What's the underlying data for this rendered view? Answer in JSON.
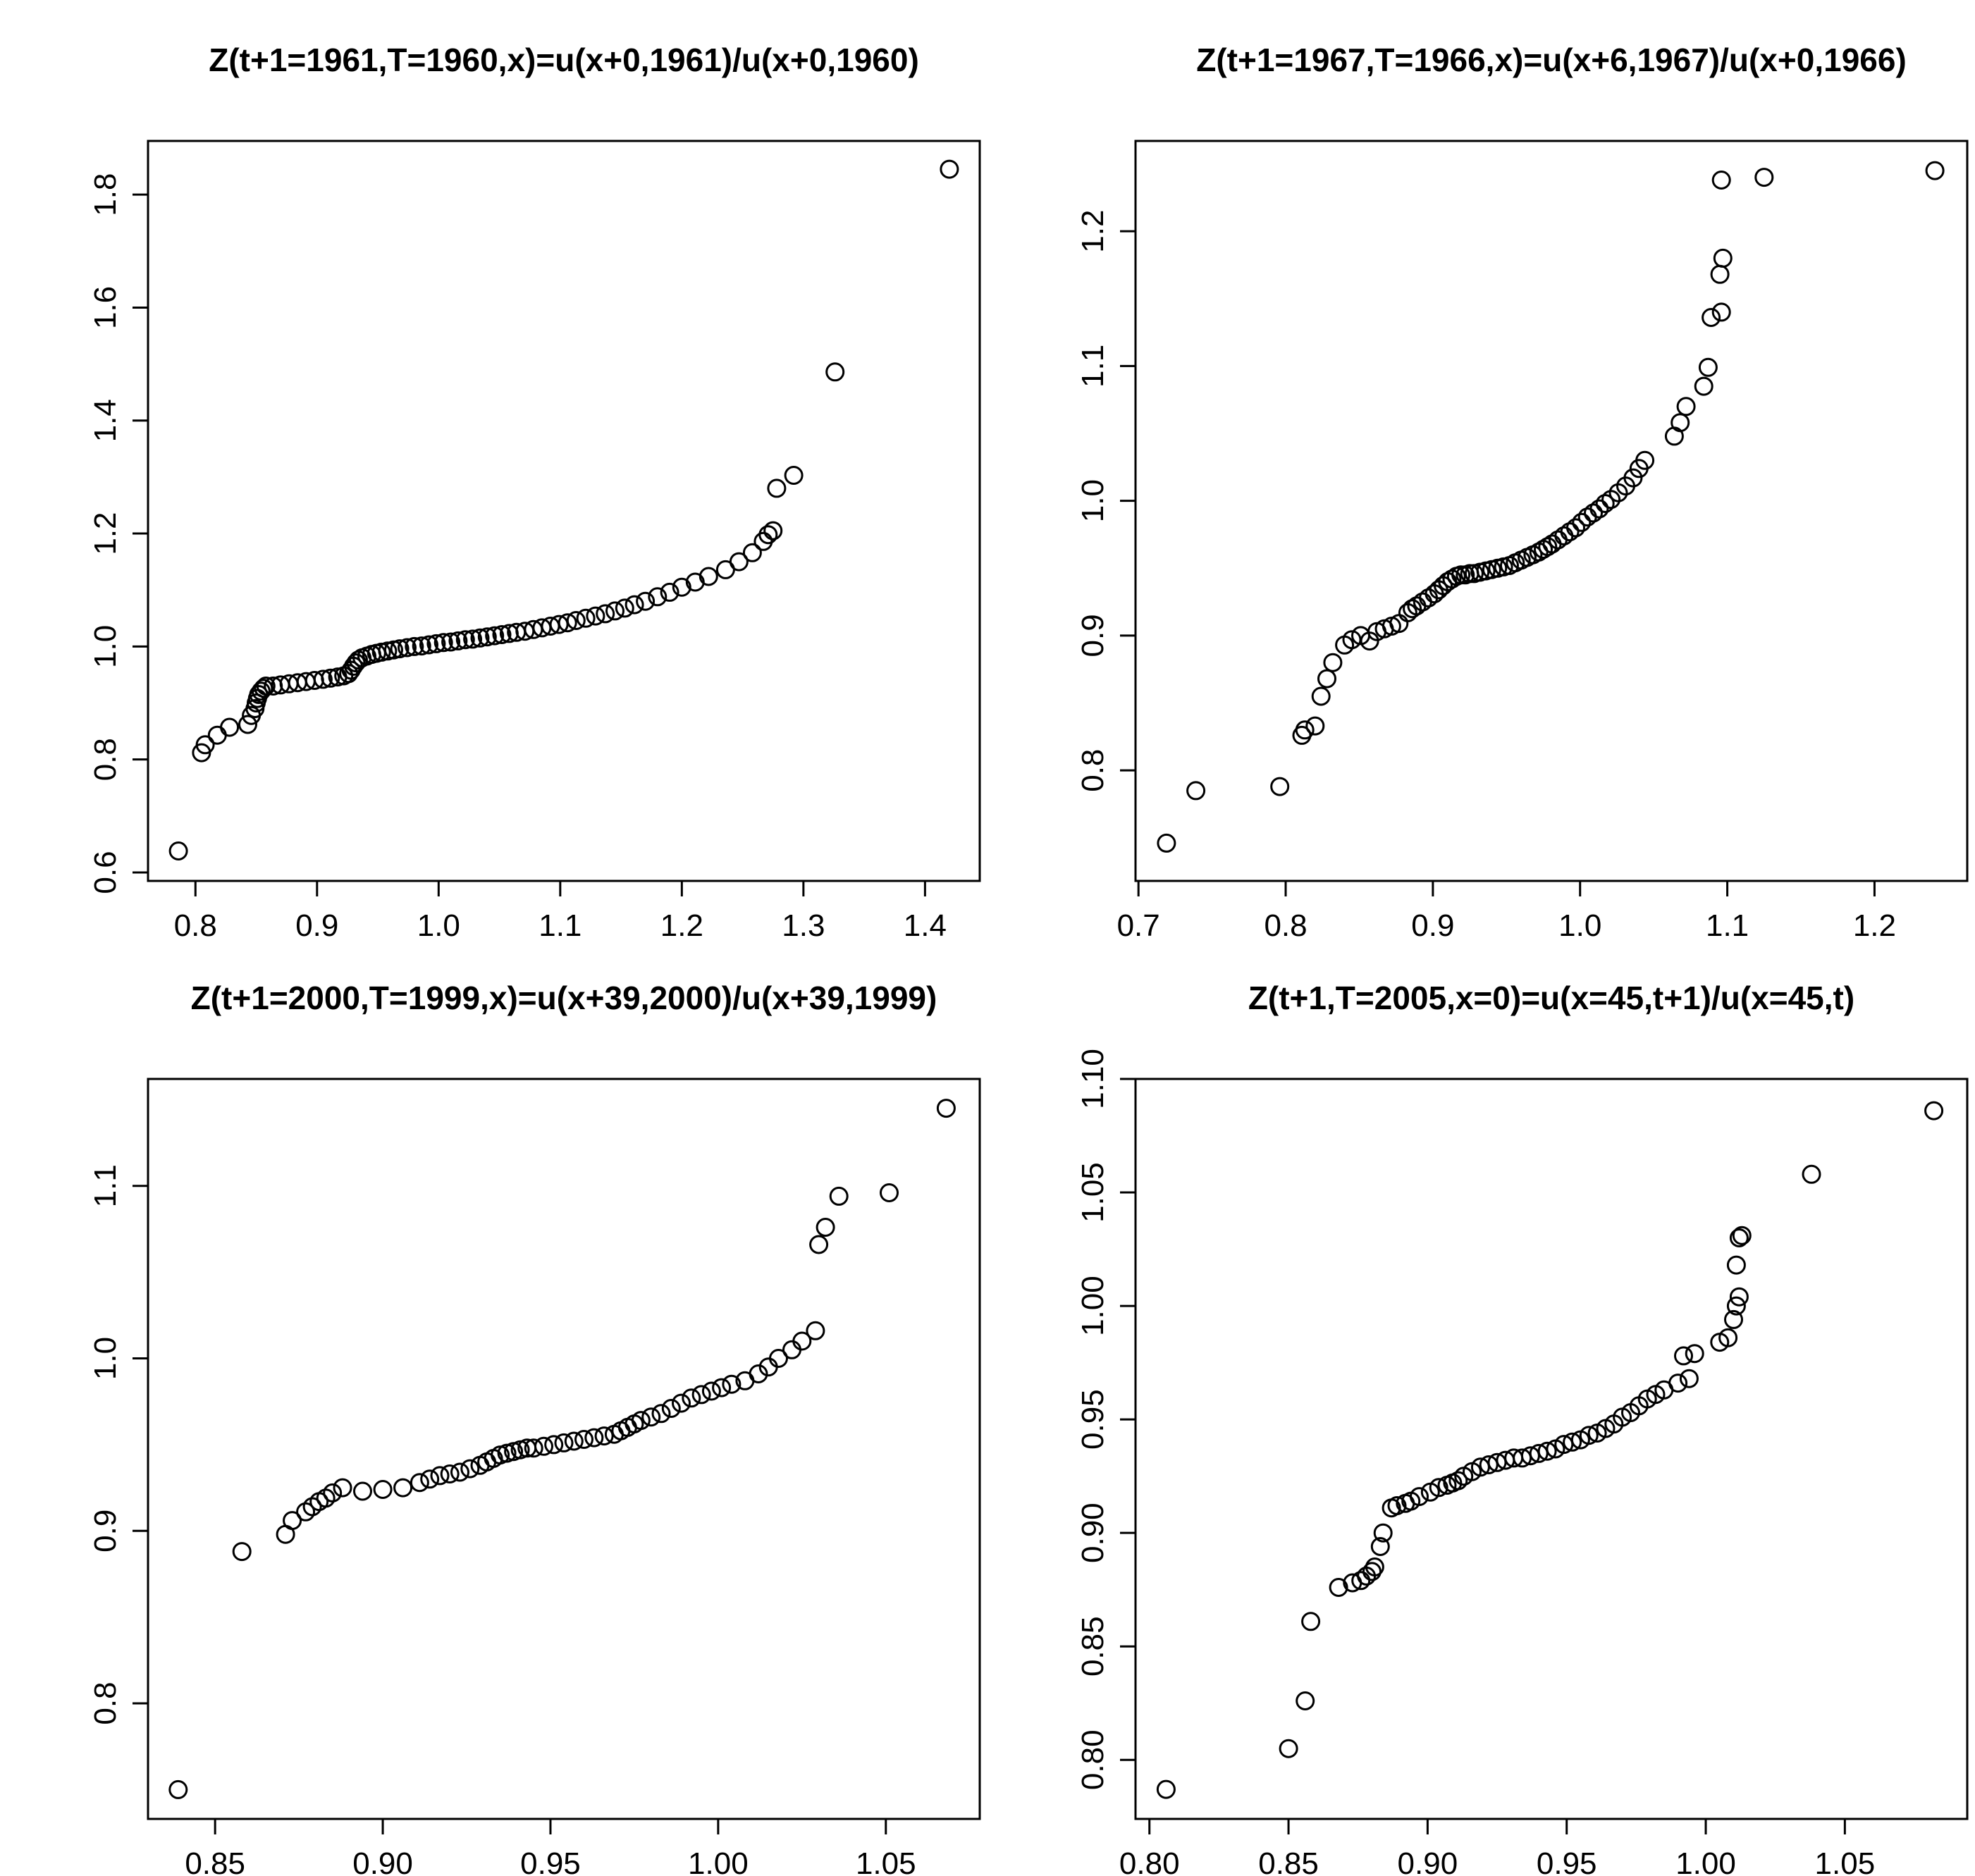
{
  "figure": {
    "background": "#ffffff",
    "foreground": "#000000",
    "layout": "2x2 scatter panels, R base graphics style, open black circle markers, full box axes, rotated y tick labels"
  },
  "chart_data": [
    {
      "type": "scatter",
      "title": "Z(t+1=1961,T=1960,x)=u(x+0,1961)/u(x+0,1960)",
      "xlabel": "",
      "ylabel": "",
      "legend": "none",
      "grid": false,
      "marker": "open-circle",
      "xlim": [
        0.761,
        1.445
      ],
      "ylim": [
        0.585,
        1.895
      ],
      "xticks": [
        {
          "v": 0.8,
          "label": "0.8"
        },
        {
          "v": 0.9,
          "label": "0.9"
        },
        {
          "v": 1.0,
          "label": "1.0"
        },
        {
          "v": 1.1,
          "label": "1.1"
        },
        {
          "v": 1.2,
          "label": "1.2"
        },
        {
          "v": 1.3,
          "label": "1.3"
        },
        {
          "v": 1.4,
          "label": "1.4"
        }
      ],
      "yticks": [
        {
          "v": 0.6,
          "label": "0.6"
        },
        {
          "v": 0.8,
          "label": "0.8"
        },
        {
          "v": 1.0,
          "label": "1.0"
        },
        {
          "v": 1.2,
          "label": "1.2"
        },
        {
          "v": 1.4,
          "label": "1.4"
        },
        {
          "v": 1.6,
          "label": "1.6"
        },
        {
          "v": 1.8,
          "label": "1.8"
        }
      ],
      "points": [
        [
          0.786,
          0.638
        ],
        [
          0.805,
          0.812
        ],
        [
          0.808,
          0.826
        ],
        [
          0.818,
          0.843
        ],
        [
          0.828,
          0.857
        ],
        [
          0.843,
          0.862
        ],
        [
          0.846,
          0.878
        ],
        [
          0.849,
          0.89
        ],
        [
          0.85,
          0.9
        ],
        [
          0.851,
          0.908
        ],
        [
          0.852,
          0.915
        ],
        [
          0.854,
          0.921
        ],
        [
          0.856,
          0.926
        ],
        [
          0.858,
          0.93
        ],
        [
          0.864,
          0.93
        ],
        [
          0.87,
          0.932
        ],
        [
          0.877,
          0.934
        ],
        [
          0.884,
          0.936
        ],
        [
          0.891,
          0.938
        ],
        [
          0.898,
          0.94
        ],
        [
          0.905,
          0.942
        ],
        [
          0.911,
          0.944
        ],
        [
          0.917,
          0.946
        ],
        [
          0.922,
          0.948
        ],
        [
          0.926,
          0.952
        ],
        [
          0.928,
          0.958
        ],
        [
          0.93,
          0.965
        ],
        [
          0.932,
          0.971
        ],
        [
          0.934,
          0.976
        ],
        [
          0.937,
          0.98
        ],
        [
          0.941,
          0.983
        ],
        [
          0.945,
          0.986
        ],
        [
          0.949,
          0.988
        ],
        [
          0.953,
          0.99
        ],
        [
          0.958,
          0.992
        ],
        [
          0.963,
          0.994
        ],
        [
          0.968,
          0.996
        ],
        [
          0.974,
          0.998
        ],
        [
          0.98,
          1.0
        ],
        [
          0.986,
          1.001
        ],
        [
          0.992,
          1.003
        ],
        [
          0.998,
          1.005
        ],
        [
          1.004,
          1.007
        ],
        [
          1.01,
          1.008
        ],
        [
          1.016,
          1.01
        ],
        [
          1.022,
          1.012
        ],
        [
          1.028,
          1.013
        ],
        [
          1.034,
          1.015
        ],
        [
          1.04,
          1.017
        ],
        [
          1.046,
          1.019
        ],
        [
          1.052,
          1.021
        ],
        [
          1.058,
          1.023
        ],
        [
          1.064,
          1.025
        ],
        [
          1.071,
          1.027
        ],
        [
          1.078,
          1.03
        ],
        [
          1.085,
          1.033
        ],
        [
          1.092,
          1.036
        ],
        [
          1.099,
          1.039
        ],
        [
          1.106,
          1.042
        ],
        [
          1.113,
          1.046
        ],
        [
          1.121,
          1.05
        ],
        [
          1.129,
          1.054
        ],
        [
          1.137,
          1.058
        ],
        [
          1.145,
          1.063
        ],
        [
          1.153,
          1.068
        ],
        [
          1.161,
          1.074
        ],
        [
          1.17,
          1.08
        ],
        [
          1.18,
          1.088
        ],
        [
          1.19,
          1.096
        ],
        [
          1.2,
          1.105
        ],
        [
          1.211,
          1.114
        ],
        [
          1.222,
          1.124
        ],
        [
          1.236,
          1.136
        ],
        [
          1.247,
          1.15
        ],
        [
          1.258,
          1.166
        ],
        [
          1.267,
          1.186
        ],
        [
          1.271,
          1.198
        ],
        [
          1.275,
          1.205
        ],
        [
          1.278,
          1.28
        ],
        [
          1.292,
          1.303
        ],
        [
          1.326,
          1.486
        ],
        [
          1.42,
          1.845
        ]
      ]
    },
    {
      "type": "scatter",
      "title": "Z(t+1=1967,T=1966,x)=u(x+6,1967)/u(x+0,1966)",
      "xlabel": "",
      "ylabel": "",
      "legend": "none",
      "grid": false,
      "marker": "open-circle",
      "xlim": [
        0.698,
        1.263
      ],
      "ylim": [
        0.718,
        1.267
      ],
      "xticks": [
        {
          "v": 0.7,
          "label": "0.7"
        },
        {
          "v": 0.8,
          "label": "0.8"
        },
        {
          "v": 0.9,
          "label": "0.9"
        },
        {
          "v": 1.0,
          "label": "1.0"
        },
        {
          "v": 1.1,
          "label": "1.1"
        },
        {
          "v": 1.2,
          "label": "1.2"
        }
      ],
      "yticks": [
        {
          "v": 0.8,
          "label": "0.8"
        },
        {
          "v": 0.9,
          "label": "0.9"
        },
        {
          "v": 1.0,
          "label": "1.0"
        },
        {
          "v": 1.1,
          "label": "1.1"
        },
        {
          "v": 1.2,
          "label": "1.2"
        }
      ],
      "points": [
        [
          0.719,
          0.746
        ],
        [
          0.739,
          0.785
        ],
        [
          0.796,
          0.788
        ],
        [
          0.811,
          0.826
        ],
        [
          0.813,
          0.83
        ],
        [
          0.82,
          0.833
        ],
        [
          0.824,
          0.855
        ],
        [
          0.828,
          0.868
        ],
        [
          0.832,
          0.88
        ],
        [
          0.84,
          0.893
        ],
        [
          0.845,
          0.897
        ],
        [
          0.851,
          0.9
        ],
        [
          0.857,
          0.896
        ],
        [
          0.862,
          0.903
        ],
        [
          0.867,
          0.905
        ],
        [
          0.872,
          0.907
        ],
        [
          0.877,
          0.909
        ],
        [
          0.883,
          0.917
        ],
        [
          0.886,
          0.92
        ],
        [
          0.889,
          0.922
        ],
        [
          0.893,
          0.925
        ],
        [
          0.897,
          0.928
        ],
        [
          0.901,
          0.931
        ],
        [
          0.904,
          0.934
        ],
        [
          0.907,
          0.937
        ],
        [
          0.91,
          0.94
        ],
        [
          0.913,
          0.942
        ],
        [
          0.916,
          0.944
        ],
        [
          0.919,
          0.945
        ],
        [
          0.922,
          0.945
        ],
        [
          0.925,
          0.946
        ],
        [
          0.928,
          0.946
        ],
        [
          0.932,
          0.947
        ],
        [
          0.936,
          0.948
        ],
        [
          0.94,
          0.949
        ],
        [
          0.944,
          0.95
        ],
        [
          0.948,
          0.951
        ],
        [
          0.952,
          0.952
        ],
        [
          0.956,
          0.954
        ],
        [
          0.96,
          0.956
        ],
        [
          0.964,
          0.958
        ],
        [
          0.968,
          0.96
        ],
        [
          0.972,
          0.962
        ],
        [
          0.975,
          0.964
        ],
        [
          0.978,
          0.966
        ],
        [
          0.981,
          0.968
        ],
        [
          0.985,
          0.971
        ],
        [
          0.989,
          0.974
        ],
        [
          0.993,
          0.977
        ],
        [
          0.997,
          0.98
        ],
        [
          1.001,
          0.984
        ],
        [
          1.005,
          0.988
        ],
        [
          1.009,
          0.991
        ],
        [
          1.013,
          0.994
        ],
        [
          1.017,
          0.998
        ],
        [
          1.021,
          1.001
        ],
        [
          1.026,
          1.006
        ],
        [
          1.031,
          1.011
        ],
        [
          1.036,
          1.017
        ],
        [
          1.04,
          1.024
        ],
        [
          1.044,
          1.03
        ],
        [
          1.064,
          1.048
        ],
        [
          1.068,
          1.058
        ],
        [
          1.072,
          1.07
        ],
        [
          1.084,
          1.085
        ],
        [
          1.087,
          1.099
        ],
        [
          1.089,
          1.136
        ],
        [
          1.096,
          1.14
        ],
        [
          1.095,
          1.168
        ],
        [
          1.097,
          1.18
        ],
        [
          1.096,
          1.238
        ],
        [
          1.125,
          1.24
        ],
        [
          1.241,
          1.245
        ]
      ]
    },
    {
      "type": "scatter",
      "title": "Z(t+1=2000,T=1999,x)=u(x+39,2000)/u(x+39,1999)",
      "xlabel": "",
      "ylabel": "",
      "legend": "none",
      "grid": false,
      "marker": "open-circle",
      "xlim": [
        0.83,
        1.078
      ],
      "ylim": [
        0.733,
        1.162
      ],
      "xticks": [
        {
          "v": 0.85,
          "label": "0.85"
        },
        {
          "v": 0.9,
          "label": "0.90"
        },
        {
          "v": 0.95,
          "label": "0.95"
        },
        {
          "v": 1.0,
          "label": "1.00"
        },
        {
          "v": 1.05,
          "label": "1.05"
        }
      ],
      "yticks": [
        {
          "v": 0.8,
          "label": "0.8"
        },
        {
          "v": 0.9,
          "label": "0.9"
        },
        {
          "v": 1.0,
          "label": "1.0"
        },
        {
          "v": 1.1,
          "label": "1.1"
        }
      ],
      "points": [
        [
          0.839,
          0.75
        ],
        [
          0.858,
          0.888
        ],
        [
          0.871,
          0.898
        ],
        [
          0.873,
          0.906
        ],
        [
          0.877,
          0.911
        ],
        [
          0.879,
          0.914
        ],
        [
          0.881,
          0.917
        ],
        [
          0.883,
          0.919
        ],
        [
          0.885,
          0.922
        ],
        [
          0.888,
          0.925
        ],
        [
          0.894,
          0.923
        ],
        [
          0.9,
          0.924
        ],
        [
          0.906,
          0.925
        ],
        [
          0.911,
          0.928
        ],
        [
          0.914,
          0.93
        ],
        [
          0.917,
          0.932
        ],
        [
          0.92,
          0.933
        ],
        [
          0.923,
          0.934
        ],
        [
          0.926,
          0.936
        ],
        [
          0.929,
          0.938
        ],
        [
          0.931,
          0.94
        ],
        [
          0.933,
          0.942
        ],
        [
          0.935,
          0.944
        ],
        [
          0.937,
          0.945
        ],
        [
          0.939,
          0.946
        ],
        [
          0.941,
          0.947
        ],
        [
          0.943,
          0.948
        ],
        [
          0.945,
          0.948
        ],
        [
          0.948,
          0.949
        ],
        [
          0.951,
          0.95
        ],
        [
          0.954,
          0.951
        ],
        [
          0.957,
          0.952
        ],
        [
          0.96,
          0.953
        ],
        [
          0.963,
          0.954
        ],
        [
          0.966,
          0.955
        ],
        [
          0.969,
          0.956
        ],
        [
          0.971,
          0.958
        ],
        [
          0.973,
          0.96
        ],
        [
          0.975,
          0.962
        ],
        [
          0.977,
          0.964
        ],
        [
          0.98,
          0.966
        ],
        [
          0.983,
          0.968
        ],
        [
          0.986,
          0.971
        ],
        [
          0.989,
          0.974
        ],
        [
          0.992,
          0.977
        ],
        [
          0.995,
          0.979
        ],
        [
          0.998,
          0.981
        ],
        [
          1.001,
          0.983
        ],
        [
          1.004,
          0.985
        ],
        [
          1.008,
          0.987
        ],
        [
          1.012,
          0.991
        ],
        [
          1.015,
          0.995
        ],
        [
          1.018,
          1.0
        ],
        [
          1.022,
          1.005
        ],
        [
          1.025,
          1.01
        ],
        [
          1.029,
          1.016
        ],
        [
          1.03,
          1.066
        ],
        [
          1.032,
          1.076
        ],
        [
          1.036,
          1.094
        ],
        [
          1.051,
          1.096
        ],
        [
          1.068,
          1.145
        ]
      ]
    },
    {
      "type": "scatter",
      "title": "Z(t+1,T=2005,x=0)=u(x=45,t+1)/u(x=45,t)",
      "xlabel": "",
      "ylabel": "",
      "legend": "none",
      "grid": false,
      "marker": "open-circle",
      "xlim": [
        0.795,
        1.094
      ],
      "ylim": [
        0.774,
        1.1
      ],
      "xticks": [
        {
          "v": 0.8,
          "label": "0.80"
        },
        {
          "v": 0.85,
          "label": "0.85"
        },
        {
          "v": 0.9,
          "label": "0.90"
        },
        {
          "v": 0.95,
          "label": "0.95"
        },
        {
          "v": 1.0,
          "label": "1.00"
        },
        {
          "v": 1.05,
          "label": "1.05"
        }
      ],
      "yticks": [
        {
          "v": 0.8,
          "label": "0.80"
        },
        {
          "v": 0.85,
          "label": "0.85"
        },
        {
          "v": 0.9,
          "label": "0.90"
        },
        {
          "v": 0.95,
          "label": "0.95"
        },
        {
          "v": 1.0,
          "label": "1.00"
        },
        {
          "v": 1.05,
          "label": "1.05"
        },
        {
          "v": 1.1,
          "label": "1.10"
        }
      ],
      "points": [
        [
          0.806,
          0.787
        ],
        [
          0.85,
          0.805
        ],
        [
          0.856,
          0.826
        ],
        [
          0.858,
          0.861
        ],
        [
          0.868,
          0.876
        ],
        [
          0.873,
          0.878
        ],
        [
          0.876,
          0.879
        ],
        [
          0.878,
          0.881
        ],
        [
          0.88,
          0.883
        ],
        [
          0.881,
          0.885
        ],
        [
          0.883,
          0.894
        ],
        [
          0.884,
          0.9
        ],
        [
          0.887,
          0.911
        ],
        [
          0.889,
          0.912
        ],
        [
          0.892,
          0.913
        ],
        [
          0.894,
          0.914
        ],
        [
          0.897,
          0.916
        ],
        [
          0.901,
          0.918
        ],
        [
          0.904,
          0.92
        ],
        [
          0.907,
          0.921
        ],
        [
          0.909,
          0.922
        ],
        [
          0.911,
          0.923
        ],
        [
          0.913,
          0.925
        ],
        [
          0.916,
          0.927
        ],
        [
          0.919,
          0.929
        ],
        [
          0.922,
          0.93
        ],
        [
          0.925,
          0.931
        ],
        [
          0.928,
          0.932
        ],
        [
          0.931,
          0.933
        ],
        [
          0.934,
          0.933
        ],
        [
          0.937,
          0.934
        ],
        [
          0.94,
          0.935
        ],
        [
          0.943,
          0.936
        ],
        [
          0.946,
          0.937
        ],
        [
          0.949,
          0.939
        ],
        [
          0.952,
          0.94
        ],
        [
          0.955,
          0.941
        ],
        [
          0.958,
          0.943
        ],
        [
          0.961,
          0.944
        ],
        [
          0.964,
          0.946
        ],
        [
          0.967,
          0.948
        ],
        [
          0.97,
          0.951
        ],
        [
          0.973,
          0.953
        ],
        [
          0.976,
          0.956
        ],
        [
          0.979,
          0.959
        ],
        [
          0.982,
          0.961
        ],
        [
          0.985,
          0.963
        ],
        [
          0.99,
          0.966
        ],
        [
          0.994,
          0.968
        ],
        [
          0.992,
          0.978
        ],
        [
          0.996,
          0.979
        ],
        [
          1.005,
          0.984
        ],
        [
          1.008,
          0.986
        ],
        [
          1.01,
          0.994
        ],
        [
          1.011,
          1.0
        ],
        [
          1.012,
          1.004
        ],
        [
          1.011,
          1.018
        ],
        [
          1.012,
          1.03
        ],
        [
          1.013,
          1.031
        ],
        [
          1.038,
          1.058
        ],
        [
          1.082,
          1.086
        ]
      ]
    }
  ]
}
